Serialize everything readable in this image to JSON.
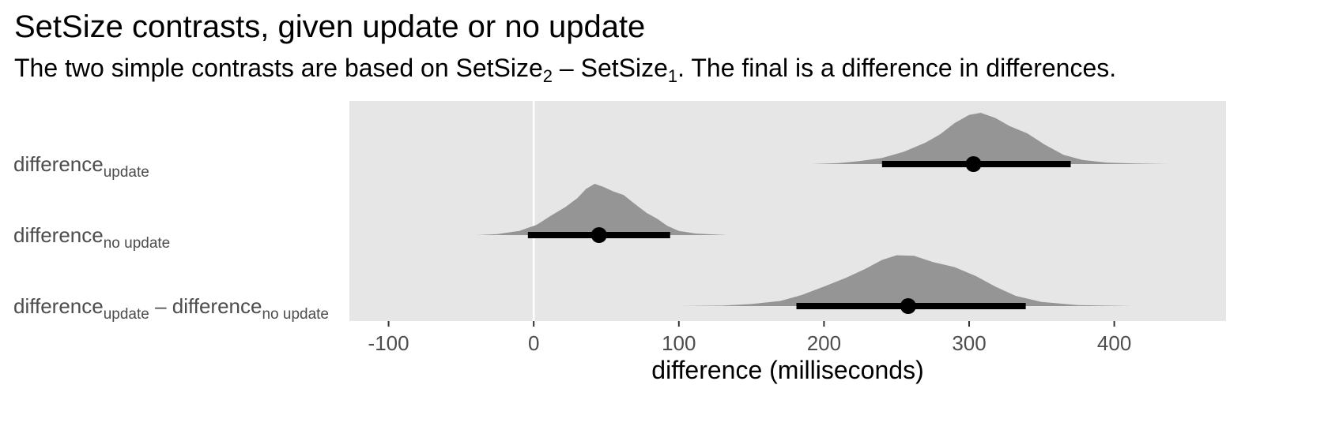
{
  "chart_data": {
    "type": "halfeye",
    "title": "SetSize contrasts, given update or no update",
    "subtitle": {
      "pre": "The two simple contrasts are based on SetSize",
      "sub_a": "2",
      "mid": " – SetSize",
      "sub_b": "1",
      "post": ". The final is a difference in differences."
    },
    "xlabel": "difference (milliseconds)",
    "xlim": [
      -127,
      477
    ],
    "xticks": [
      -100,
      0,
      100,
      200,
      300,
      400
    ],
    "reference_line": 0,
    "colors": {
      "panel": "#e6e6e6",
      "density": "#959595",
      "interval": "#000000",
      "gridline": "#ffffff"
    },
    "rows": [
      {
        "label": {
          "base": "difference",
          "sub": "update"
        },
        "point": 303,
        "interval": [
          240,
          370
        ],
        "support": [
          192,
          437
        ],
        "density": [
          [
            192,
            0
          ],
          [
            210,
            0.02
          ],
          [
            225,
            0.06
          ],
          [
            240,
            0.12
          ],
          [
            255,
            0.24
          ],
          [
            270,
            0.42
          ],
          [
            280,
            0.58
          ],
          [
            290,
            0.8
          ],
          [
            300,
            0.96
          ],
          [
            308,
            1.0
          ],
          [
            318,
            0.9
          ],
          [
            328,
            0.74
          ],
          [
            340,
            0.6
          ],
          [
            352,
            0.38
          ],
          [
            365,
            0.18
          ],
          [
            378,
            0.08
          ],
          [
            395,
            0.03
          ],
          [
            415,
            0.01
          ],
          [
            437,
            0
          ]
        ]
      },
      {
        "label": {
          "base": "difference",
          "sub": "no update"
        },
        "point": 45,
        "interval": [
          -4,
          94
        ],
        "support": [
          -39,
          133
        ],
        "density": [
          [
            -39,
            0
          ],
          [
            -25,
            0.02
          ],
          [
            -10,
            0.08
          ],
          [
            2,
            0.2
          ],
          [
            12,
            0.38
          ],
          [
            22,
            0.55
          ],
          [
            30,
            0.72
          ],
          [
            36,
            0.9
          ],
          [
            42,
            1.0
          ],
          [
            48,
            0.94
          ],
          [
            55,
            0.85
          ],
          [
            62,
            0.78
          ],
          [
            70,
            0.6
          ],
          [
            78,
            0.43
          ],
          [
            85,
            0.32
          ],
          [
            92,
            0.18
          ],
          [
            100,
            0.08
          ],
          [
            112,
            0.03
          ],
          [
            133,
            0
          ]
        ]
      },
      {
        "label": {
          "base": "difference",
          "sub": "update",
          "mid": " – difference",
          "sub2": "no update"
        },
        "point": 258,
        "interval": [
          181,
          339
        ],
        "support": [
          100,
          413
        ],
        "density": [
          [
            100,
            0
          ],
          [
            130,
            0.01
          ],
          [
            150,
            0.04
          ],
          [
            170,
            0.1
          ],
          [
            185,
            0.22
          ],
          [
            200,
            0.38
          ],
          [
            215,
            0.55
          ],
          [
            228,
            0.72
          ],
          [
            240,
            0.9
          ],
          [
            250,
            0.99
          ],
          [
            262,
            0.98
          ],
          [
            275,
            0.86
          ],
          [
            290,
            0.76
          ],
          [
            305,
            0.58
          ],
          [
            318,
            0.38
          ],
          [
            332,
            0.2
          ],
          [
            350,
            0.08
          ],
          [
            375,
            0.02
          ],
          [
            413,
            0
          ]
        ]
      }
    ]
  }
}
